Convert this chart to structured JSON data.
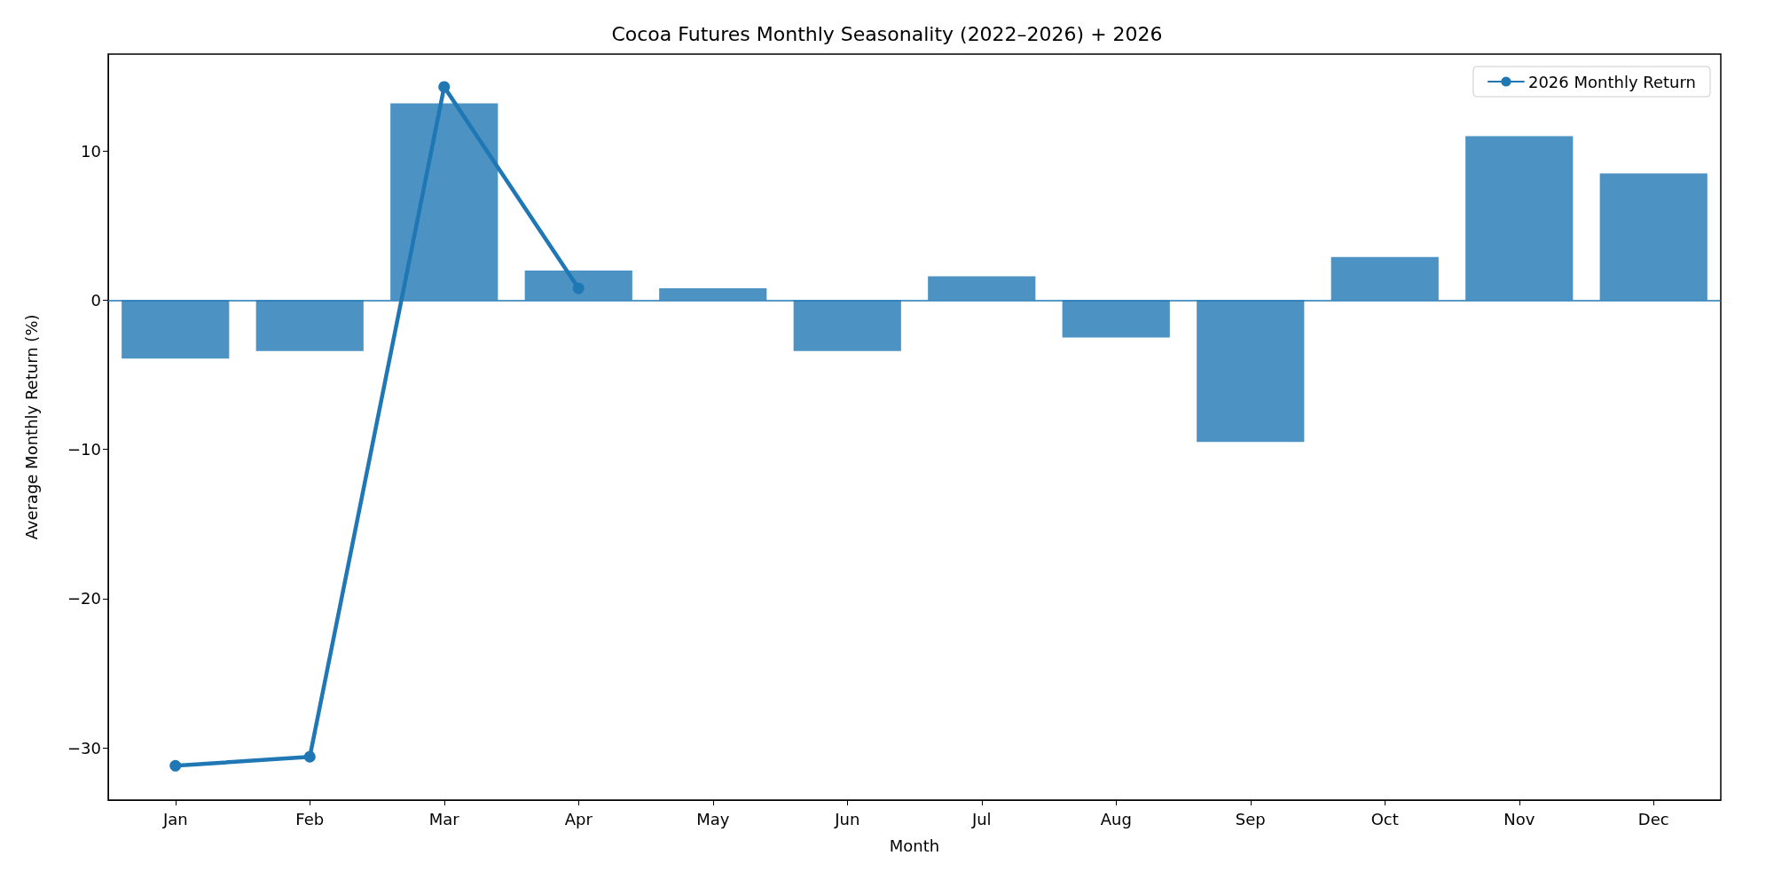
{
  "chart_data": {
    "type": "bar",
    "title": "Cocoa Futures Monthly Seasonality (2022–2026) + 2026",
    "xlabel": "Month",
    "ylabel": "Average Monthly Return (%)",
    "categories": [
      "Jan",
      "Feb",
      "Mar",
      "Apr",
      "May",
      "Jun",
      "Jul",
      "Aug",
      "Sep",
      "Oct",
      "Nov",
      "Dec"
    ],
    "series": [
      {
        "color": "#4c92c3",
        "values": [
          -3.9,
          -3.4,
          13.2,
          2.0,
          0.8,
          -3.4,
          1.6,
          -2.5,
          -9.5,
          2.9,
          11.0,
          8.5
        ]
      },
      {
        "type": "line",
        "name": "2026 Monthly Return",
        "color": "#1f77b4",
        "marker": "circle",
        "line_style": "solid",
        "values": [
          -31.2,
          -30.6,
          14.3,
          0.8,
          null,
          null,
          null,
          null,
          null,
          null,
          null,
          null
        ]
      }
    ],
    "ylim": [
      -33.5,
      16.5
    ],
    "yticks": [
      -30,
      -20,
      -10,
      0,
      10
    ],
    "ref_lines": [
      {
        "axis": "y",
        "value": 0,
        "color": "#1f77b4"
      }
    ],
    "grid": false,
    "legend": "top right"
  }
}
